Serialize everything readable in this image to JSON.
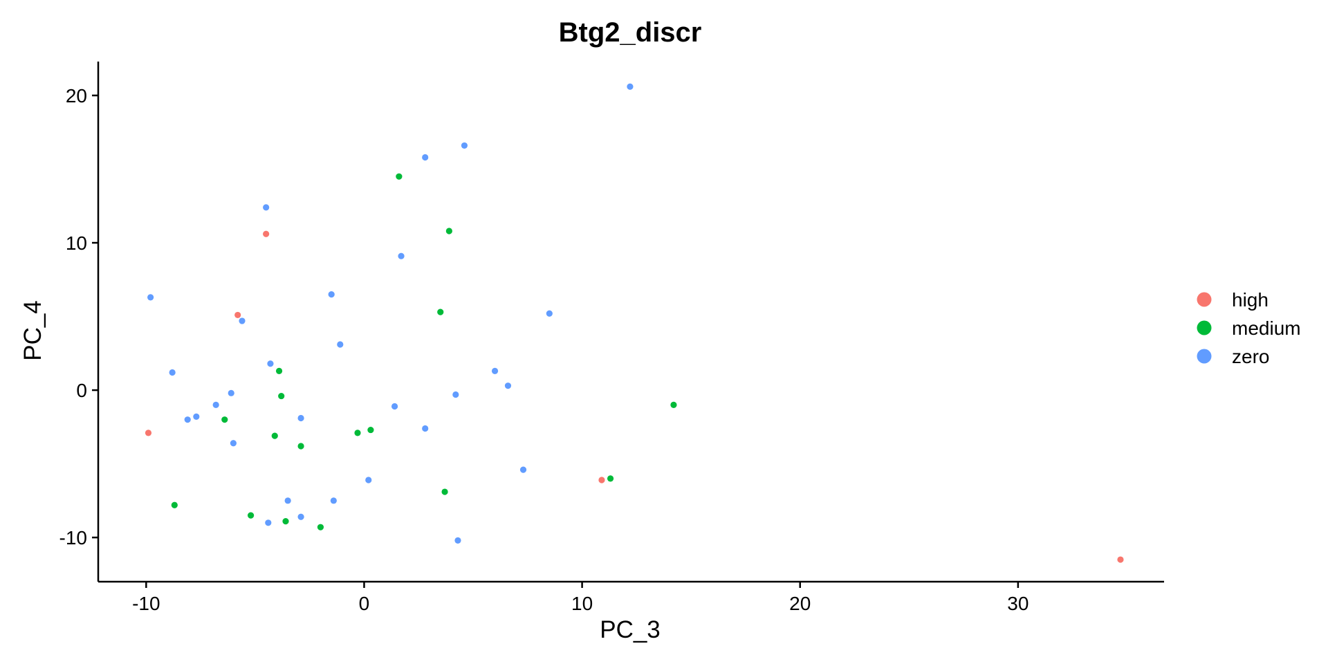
{
  "chart_data": {
    "type": "scatter",
    "title": "Btg2_discr",
    "xlabel": "PC_3",
    "ylabel": "PC_4",
    "xlim": [
      -12.2,
      36.7
    ],
    "ylim": [
      -13.0,
      22.3
    ],
    "xticks": [
      -10,
      0,
      10,
      20,
      30
    ],
    "yticks": [
      -10,
      0,
      10,
      20
    ],
    "grid": false,
    "legend_position": "right",
    "series": [
      {
        "name": "high",
        "color": "#F8766D",
        "points": [
          [
            -4.5,
            10.6
          ],
          [
            -5.8,
            5.1
          ],
          [
            -9.9,
            -2.9
          ],
          [
            10.9,
            -6.1
          ],
          [
            34.7,
            -11.5
          ]
        ]
      },
      {
        "name": "medium",
        "color": "#00BA38",
        "points": [
          [
            1.6,
            14.5
          ],
          [
            3.9,
            10.8
          ],
          [
            3.5,
            5.3
          ],
          [
            -3.9,
            1.3
          ],
          [
            -3.8,
            -0.4
          ],
          [
            -6.4,
            -2.0
          ],
          [
            -4.1,
            -3.1
          ],
          [
            -2.9,
            -3.8
          ],
          [
            -0.3,
            -2.9
          ],
          [
            0.3,
            -2.7
          ],
          [
            14.2,
            -1.0
          ],
          [
            11.3,
            -6.0
          ],
          [
            3.7,
            -6.9
          ],
          [
            -8.7,
            -7.8
          ],
          [
            -5.2,
            -8.5
          ],
          [
            -3.6,
            -8.9
          ],
          [
            -2.0,
            -9.3
          ]
        ]
      },
      {
        "name": "zero",
        "color": "#619CFF",
        "points": [
          [
            12.2,
            20.6
          ],
          [
            4.6,
            16.6
          ],
          [
            2.8,
            15.8
          ],
          [
            -4.5,
            12.4
          ],
          [
            1.7,
            9.1
          ],
          [
            -9.8,
            6.3
          ],
          [
            -1.5,
            6.5
          ],
          [
            -5.6,
            4.7
          ],
          [
            8.5,
            5.2
          ],
          [
            -1.1,
            3.1
          ],
          [
            -4.3,
            1.8
          ],
          [
            -8.8,
            1.2
          ],
          [
            6.0,
            1.3
          ],
          [
            6.6,
            0.3
          ],
          [
            -6.1,
            -0.2
          ],
          [
            -6.8,
            -1.0
          ],
          [
            1.4,
            -1.1
          ],
          [
            4.2,
            -0.3
          ],
          [
            -7.7,
            -1.8
          ],
          [
            -8.1,
            -2.0
          ],
          [
            -2.9,
            -1.9
          ],
          [
            2.8,
            -2.6
          ],
          [
            -6.0,
            -3.6
          ],
          [
            7.3,
            -5.4
          ],
          [
            0.2,
            -6.1
          ],
          [
            -3.5,
            -7.5
          ],
          [
            -1.4,
            -7.5
          ],
          [
            -2.9,
            -8.6
          ],
          [
            -4.4,
            -9.0
          ],
          [
            4.3,
            -10.2
          ]
        ]
      }
    ]
  }
}
